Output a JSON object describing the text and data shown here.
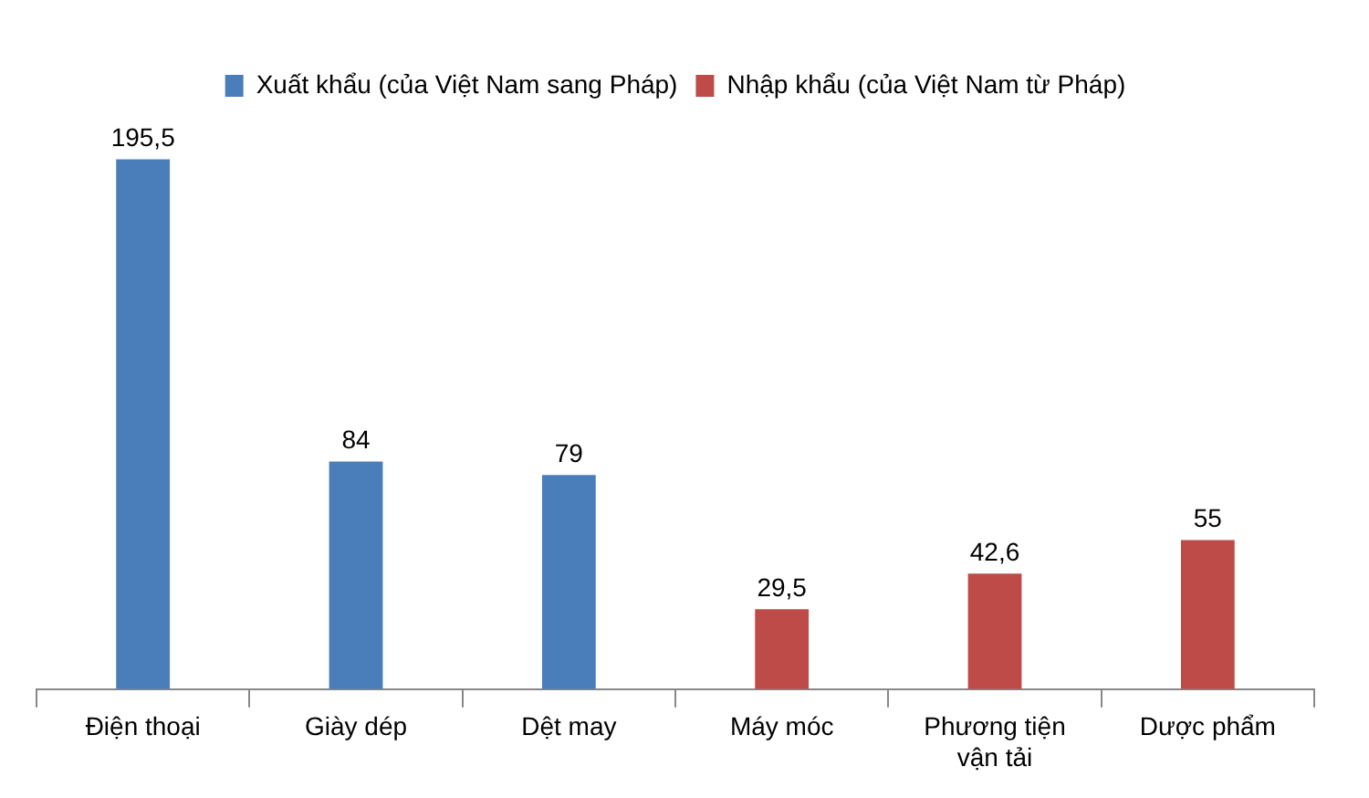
{
  "chart_data": {
    "type": "bar",
    "categories": [
      "Điện thoại",
      "Giày dép",
      "Dệt may",
      "Máy móc",
      "Phương tiện vận tải",
      "Dược phẩm"
    ],
    "series": [
      {
        "name": "Xuất khẩu (của Việt Nam sang Pháp)",
        "color": "#4a7ebb",
        "values": [
          195.5,
          84,
          79,
          null,
          null,
          null
        ],
        "value_labels": [
          "195,5",
          "84",
          "79",
          null,
          null,
          null
        ]
      },
      {
        "name": "Nhập khẩu (của Việt Nam từ Pháp)",
        "color": "#be4b48",
        "values": [
          null,
          null,
          null,
          29.5,
          42.6,
          55
        ],
        "value_labels": [
          null,
          null,
          null,
          "29,5",
          "42,6",
          "55"
        ]
      }
    ],
    "legend": "top",
    "grid": false
  }
}
